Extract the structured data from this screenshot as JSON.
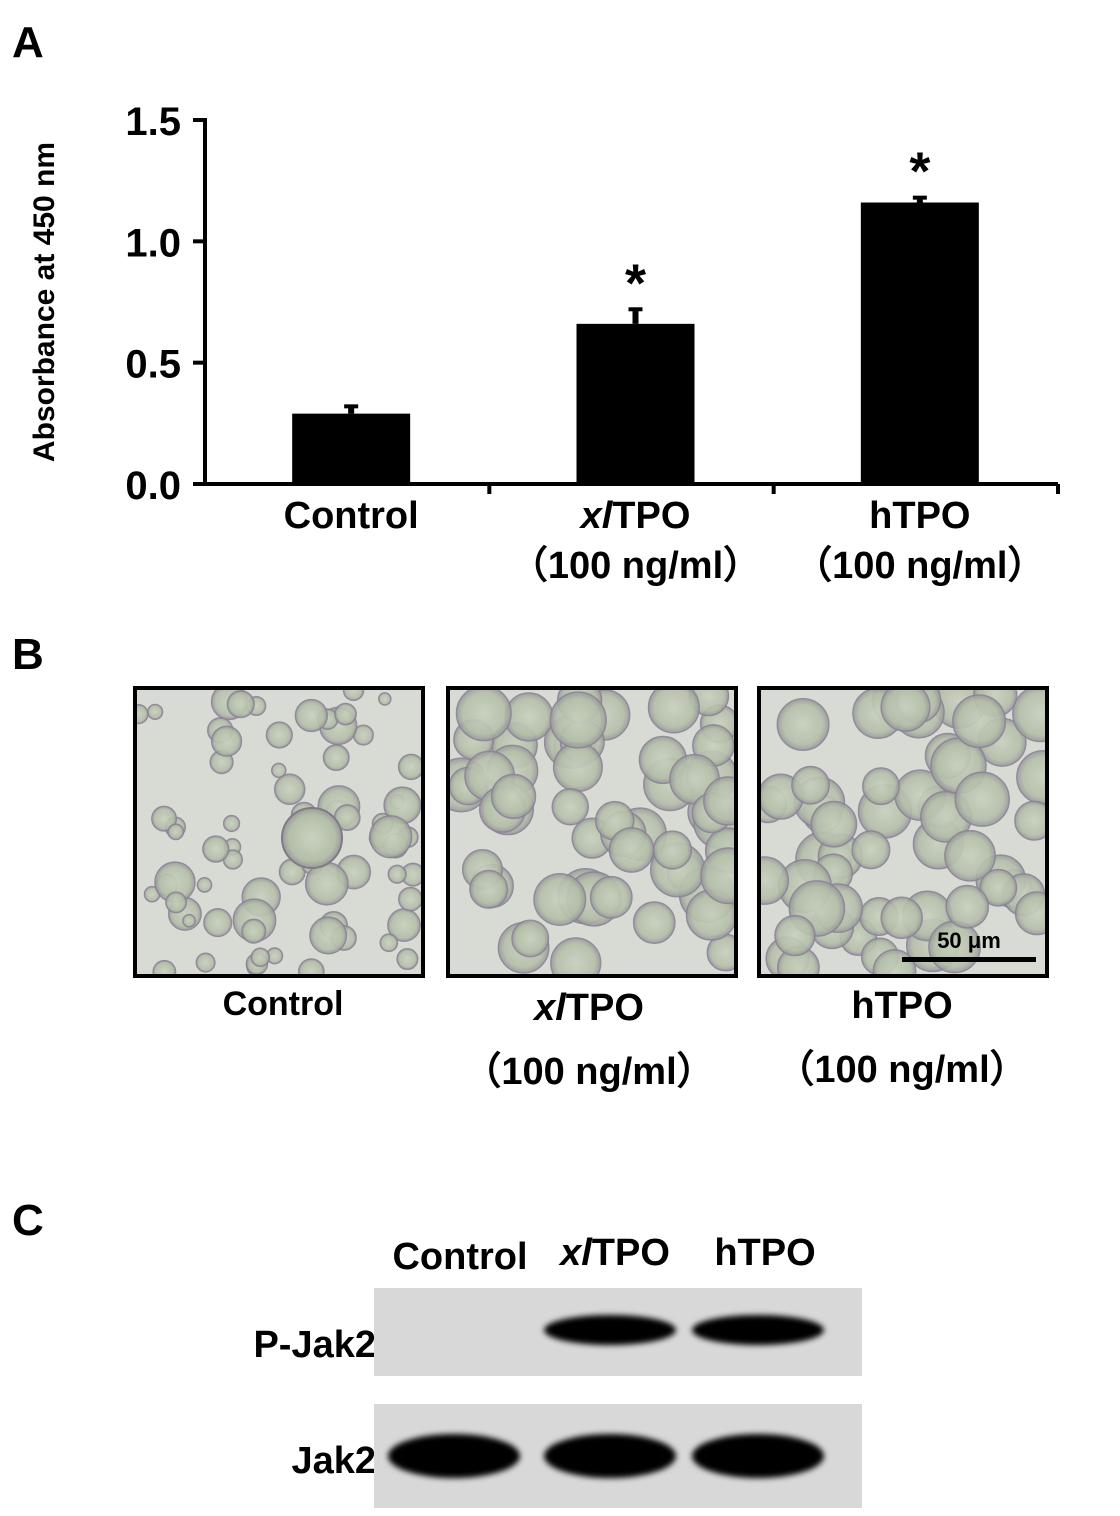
{
  "panels": {
    "a": {
      "letter": "A"
    },
    "b": {
      "letter": "B"
    },
    "c": {
      "letter": "C"
    }
  },
  "chart_data": {
    "type": "bar",
    "ylabel": "Absorbance at 450 nm",
    "ylim": [
      0,
      1.5
    ],
    "yticks": [
      "0.0",
      "0.5",
      "1.0",
      "1.5"
    ],
    "categories": [
      {
        "name_prefix": "",
        "name_rest": "Control",
        "conc": ""
      },
      {
        "name_prefix": "xl",
        "name_rest": "TPO",
        "conc": "（100 ng/ml）"
      },
      {
        "name_prefix": "",
        "name_rest": "hTPO",
        "conc": "（100 ng/ml）"
      }
    ],
    "values": [
      0.29,
      0.66,
      1.16
    ],
    "errors": [
      0.03,
      0.06,
      0.02
    ],
    "significance": [
      "",
      "*",
      "*"
    ],
    "bar_color": "#000000"
  },
  "micrographs": {
    "images": [
      {
        "label_prefix": "",
        "label_rest": "Control",
        "conc": ""
      },
      {
        "label_prefix": "xl",
        "label_rest": "TPO",
        "conc": "（100 ng/ml）"
      },
      {
        "label_prefix": "",
        "label_rest": "hTPO",
        "conc": "（100 ng/ml）"
      }
    ],
    "scale_bar_label": "50 μm"
  },
  "western_blot": {
    "lanes": [
      {
        "prefix": "",
        "rest": "Control"
      },
      {
        "prefix": "xl",
        "rest": "TPO"
      },
      {
        "prefix": "",
        "rest": "hTPO"
      }
    ],
    "rows": [
      {
        "label": "P-Jak2",
        "intensity": [
          0,
          1,
          1
        ]
      },
      {
        "label": "Jak2",
        "intensity": [
          1,
          1,
          1
        ]
      }
    ]
  }
}
